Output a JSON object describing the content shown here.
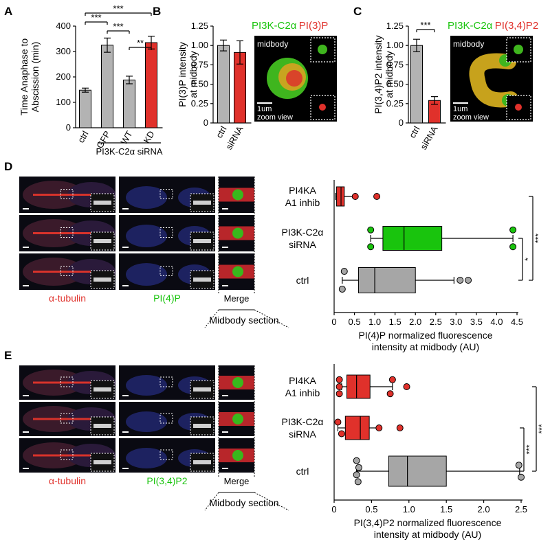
{
  "panels": {
    "A": "A",
    "B": "B",
    "C": "C",
    "D": "D",
    "E": "E"
  },
  "chart_data": [
    {
      "id": "A",
      "type": "bar",
      "ylabel": [
        "Time Anaphase to",
        "Abscission (min)"
      ],
      "categories": [
        "ctrl",
        "GFP",
        "WT",
        "KD"
      ],
      "values": [
        148,
        325,
        188,
        335
      ],
      "errors": [
        8,
        28,
        15,
        25
      ],
      "colors": [
        "#b3b3b3",
        "#b3b3b3",
        "#b3b3b3",
        "#e0312b"
      ],
      "ylim": [
        0,
        400
      ],
      "yticks": [
        "0",
        "100",
        "200",
        "300",
        "400"
      ],
      "ytick_values": [
        0,
        100,
        200,
        300,
        400
      ],
      "group_label": "PI3K-C2α siRNA",
      "significance": [
        {
          "from": 0,
          "to": 3,
          "label": "***"
        },
        {
          "from": 0,
          "to": 1,
          "label": "***"
        },
        {
          "from": 1,
          "to": 2,
          "label": "***"
        },
        {
          "from": 2,
          "to": 3,
          "label": "**"
        }
      ]
    },
    {
      "id": "B",
      "type": "bar",
      "ylabel": [
        "PI(3)P intensity",
        "at midbody"
      ],
      "categories": [
        "ctrl",
        "siRNA"
      ],
      "values": [
        1.0,
        0.91
      ],
      "errors": [
        0.07,
        0.15
      ],
      "colors": [
        "#b3b3b3",
        "#e0312b"
      ],
      "ylim": [
        0,
        1.25
      ],
      "yticks": [
        "0",
        "0.25",
        "0.50",
        "0.75",
        "1.00",
        "1.25"
      ],
      "ytick_values": [
        0,
        0.25,
        0.5,
        0.75,
        1.0,
        1.25
      ],
      "image": {
        "title_green": "PI3K-C2α",
        "title_red": "PI(3)P",
        "label": "midbody",
        "scale": "1um",
        "zoom": "zoom view"
      }
    },
    {
      "id": "C",
      "type": "bar",
      "ylabel": [
        "PI(3,4)P2 intensity",
        "at midbody"
      ],
      "categories": [
        "ctrl",
        "siRNA"
      ],
      "values": [
        1.0,
        0.29
      ],
      "errors": [
        0.08,
        0.05
      ],
      "colors": [
        "#b3b3b3",
        "#e0312b"
      ],
      "ylim": [
        0,
        1.25
      ],
      "yticks": [
        "0",
        "0.25",
        "0.50",
        "0.75",
        "1.00",
        "1.25"
      ],
      "ytick_values": [
        0,
        0.25,
        0.5,
        0.75,
        1.0,
        1.25
      ],
      "significance": [
        {
          "from": 0,
          "to": 1,
          "label": "***"
        }
      ],
      "image": {
        "title_green": "PI3K-C2α",
        "title_red": "PI(3,4)P2",
        "label": "midbody",
        "scale": "1um",
        "zoom": "zoom view"
      }
    },
    {
      "id": "D",
      "type": "boxplot",
      "xlabel": [
        "PI(4)P normalized fluorescence",
        "intensity at midbody (AU)"
      ],
      "xlim": [
        0,
        4.5
      ],
      "xticks": [
        "0",
        "0.5",
        "1.0",
        "1.5",
        "2.0",
        "2.5",
        "3.0",
        "3.5",
        "4.0",
        "4.5"
      ],
      "xtick_values": [
        0,
        0.5,
        1.0,
        1.5,
        2.0,
        2.5,
        3.0,
        3.5,
        4.0,
        4.5
      ],
      "groups": [
        {
          "label": [
            "PI4KA",
            "A1 inhib"
          ],
          "min": 0.04,
          "q1": 0.06,
          "median": 0.17,
          "q3": 0.25,
          "max": 0.52,
          "color": "#e0312b",
          "outliers": [
            [
              0.52,
              0.0
            ],
            [
              1.05,
              0.0
            ]
          ]
        },
        {
          "label": [
            "PI3K-C2α",
            "siRNA"
          ],
          "min": 0.9,
          "q1": 1.2,
          "median": 1.72,
          "q3": 2.65,
          "max": 4.4,
          "color": "#19c40d",
          "outliers": [
            [
              0.9,
              -0.35
            ],
            [
              0.9,
              0.35
            ],
            [
              4.4,
              -0.35
            ],
            [
              4.4,
              0.35
            ]
          ]
        },
        {
          "label": [
            "ctrl"
          ],
          "min": 0.2,
          "q1": 0.6,
          "median": 1.0,
          "q3": 2.0,
          "max": 2.95,
          "color": "#a6a6a6",
          "outliers": [
            [
              0.25,
              -0.35
            ],
            [
              0.2,
              0.35
            ],
            [
              3.1,
              0.0
            ],
            [
              3.3,
              0.0
            ]
          ]
        }
      ],
      "significance": [
        {
          "from": 0,
          "to": 2,
          "label": "***"
        },
        {
          "from": 1,
          "to": 2,
          "label": "*"
        }
      ],
      "images": {
        "stain1": "α-tubulin",
        "stain2": "PI(4)P",
        "merge": "Merge",
        "section": "Midbody section"
      }
    },
    {
      "id": "E",
      "type": "boxplot",
      "xlabel": [
        "PI(3,4)P2 normalized fluorescence",
        "intensity at midbody (AU)"
      ],
      "xlim": [
        0,
        2.5
      ],
      "xticks": [
        "0",
        "0.5",
        "1.0",
        "1.5",
        "2.0",
        "2.5"
      ],
      "xtick_values": [
        0,
        0.5,
        1.0,
        1.5,
        2.0,
        2.5
      ],
      "groups": [
        {
          "label": [
            "PI4KA",
            "A1 inhib"
          ],
          "min": 0.1,
          "q1": 0.17,
          "median": 0.3,
          "q3": 0.48,
          "max": 0.78,
          "color": "#e0312b",
          "outliers": [
            [
              0.07,
              -0.3
            ],
            [
              0.07,
              0.0
            ],
            [
              0.07,
              0.3
            ],
            [
              0.78,
              -0.3
            ],
            [
              0.75,
              0.3
            ],
            [
              0.97,
              0.0
            ]
          ]
        },
        {
          "label": [
            "PI3K-C2α",
            "siRNA"
          ],
          "min": 0.05,
          "q1": 0.15,
          "median": 0.35,
          "q3": 0.47,
          "max": 0.6,
          "color": "#e0312b",
          "outliers": [
            [
              0.05,
              -0.25
            ],
            [
              0.1,
              0.25
            ],
            [
              0.6,
              0.0
            ],
            [
              0.88,
              0.0
            ]
          ]
        },
        {
          "label": [
            "ctrl"
          ],
          "min": 0.3,
          "q1": 0.73,
          "median": 0.98,
          "q3": 1.5,
          "max": 2.48,
          "color": "#a6a6a6",
          "outliers": [
            [
              0.3,
              -0.35
            ],
            [
              0.33,
              -0.12
            ],
            [
              0.3,
              0.12
            ],
            [
              0.32,
              0.35
            ],
            [
              2.47,
              -0.2
            ],
            [
              2.5,
              0.2
            ]
          ]
        }
      ],
      "significance": [
        {
          "from": 0,
          "to": 2,
          "label": "***"
        },
        {
          "from": 1,
          "to": 2,
          "label": "***"
        }
      ],
      "images": {
        "stain1": "α-tubulin",
        "stain2": "PI(3,4)P2",
        "merge": "Merge",
        "section": "Midbody section"
      }
    }
  ]
}
